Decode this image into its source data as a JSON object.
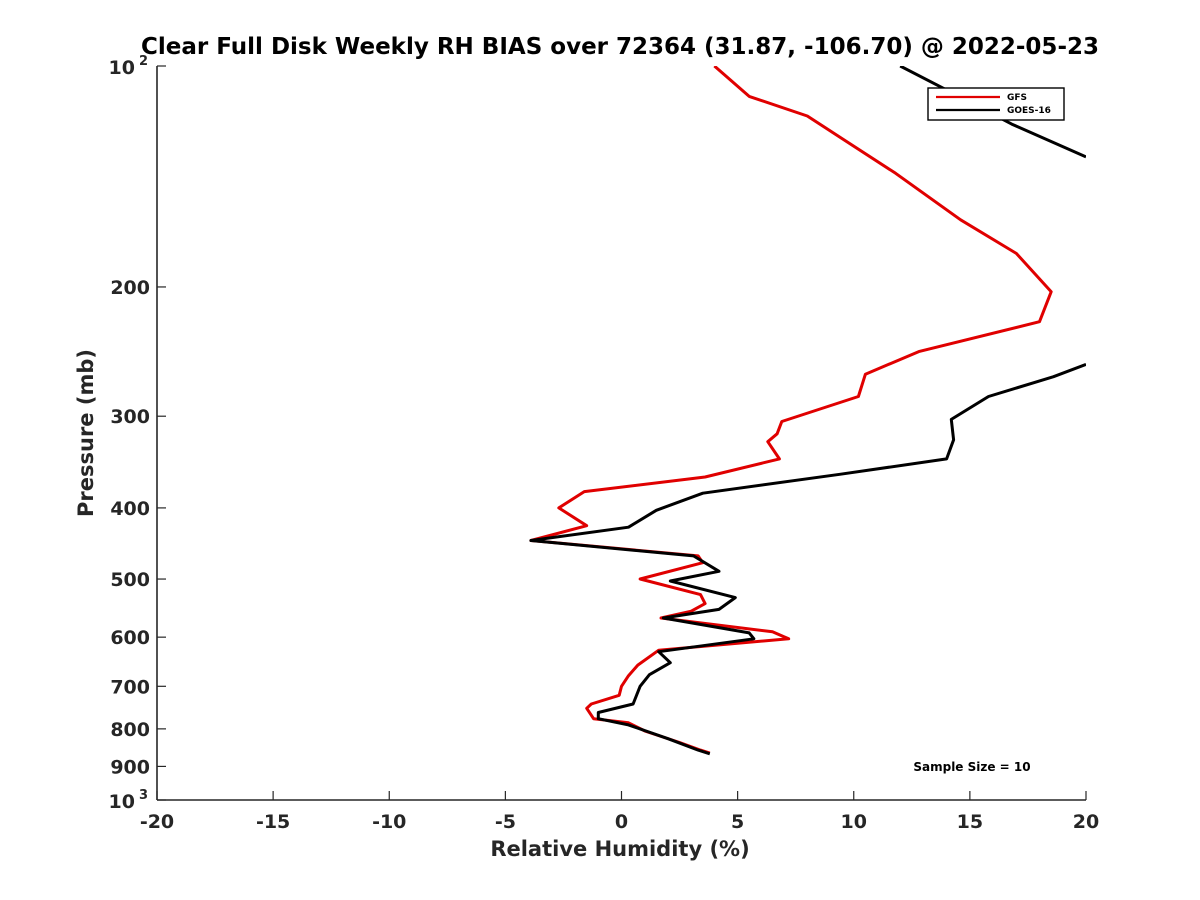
{
  "chart_data": {
    "type": "line",
    "title": "Clear Full Disk Weekly RH BIAS over 72364 (31.87, -106.70) @ 2022-05-23",
    "xlabel": "Relative Humidity (%)",
    "ylabel": "Pressure (mb)",
    "xlim": [
      -20,
      20
    ],
    "ylim": [
      100,
      1000
    ],
    "y_scale": "log",
    "y_reversed": true,
    "grid": false,
    "legend_position": "top-right",
    "annotation": "Sample Size = 10",
    "x_ticks": [
      "-20",
      "-15",
      "-10",
      "-5",
      "0",
      "5",
      "10",
      "15",
      "20"
    ],
    "y_ticks": [
      {
        "value": 100,
        "base": "10",
        "exp": "2"
      },
      {
        "value": 200,
        "label": "200"
      },
      {
        "value": 300,
        "label": "300"
      },
      {
        "value": 400,
        "label": "400"
      },
      {
        "value": 500,
        "label": "500"
      },
      {
        "value": 600,
        "label": "600"
      },
      {
        "value": 700,
        "label": "700"
      },
      {
        "value": 800,
        "label": "800"
      },
      {
        "value": 900,
        "label": "900"
      },
      {
        "value": 1000,
        "base": "10",
        "exp": "3"
      }
    ],
    "series": [
      {
        "name": "GFS",
        "color": "#e00000",
        "points": [
          [
            3.8,
            863
          ],
          [
            3.4,
            855
          ],
          [
            2.5,
            835
          ],
          [
            1.0,
            805
          ],
          [
            0.3,
            785
          ],
          [
            -1.2,
            775
          ],
          [
            -1.5,
            750
          ],
          [
            -1.3,
            740
          ],
          [
            -0.1,
            720
          ],
          [
            0.0,
            700
          ],
          [
            0.3,
            677
          ],
          [
            0.7,
            655
          ],
          [
            1.6,
            625
          ],
          [
            7.2,
            603
          ],
          [
            6.5,
            590
          ],
          [
            1.7,
            565
          ],
          [
            3.0,
            553
          ],
          [
            3.6,
            540
          ],
          [
            3.4,
            525
          ],
          [
            0.8,
            500
          ],
          [
            3.5,
            475
          ],
          [
            3.3,
            465
          ],
          [
            -3.9,
            443
          ],
          [
            -1.5,
            423
          ],
          [
            -2.7,
            400
          ],
          [
            -1.6,
            380
          ],
          [
            3.6,
            363
          ],
          [
            6.8,
            343
          ],
          [
            6.3,
            325
          ],
          [
            6.7,
            317
          ],
          [
            6.9,
            305
          ],
          [
            10.2,
            282
          ],
          [
            10.5,
            263
          ],
          [
            12.8,
            245
          ],
          [
            18.0,
            223
          ],
          [
            18.5,
            203
          ],
          [
            17.0,
            180
          ],
          [
            14.6,
            162
          ],
          [
            11.8,
            140
          ],
          [
            9.4,
            125
          ],
          [
            8.0,
            117
          ],
          [
            5.5,
            110
          ],
          [
            4.0,
            100
          ]
        ]
      },
      {
        "name": "GOES-16",
        "color": "#000000",
        "points": [
          [
            3.8,
            865
          ],
          [
            3.3,
            855
          ],
          [
            2.0,
            825
          ],
          [
            0.3,
            790
          ],
          [
            -1.0,
            775
          ],
          [
            -1.0,
            760
          ],
          [
            0.5,
            740
          ],
          [
            0.8,
            700
          ],
          [
            1.2,
            675
          ],
          [
            2.1,
            650
          ],
          [
            1.6,
            628
          ],
          [
            5.7,
            603
          ],
          [
            5.5,
            592
          ],
          [
            1.8,
            565
          ],
          [
            4.2,
            550
          ],
          [
            4.9,
            530
          ],
          [
            2.1,
            503
          ],
          [
            4.2,
            488
          ],
          [
            3.1,
            465
          ],
          [
            -3.9,
            443
          ],
          [
            0.3,
            425
          ],
          [
            1.5,
            403
          ],
          [
            3.5,
            382
          ],
          [
            9.4,
            360
          ],
          [
            14.0,
            343
          ],
          [
            14.3,
            323
          ],
          [
            14.2,
            303
          ],
          [
            15.8,
            282
          ],
          [
            18.6,
            265
          ],
          [
            20.0,
            255
          ]
        ],
        "top_points": [
          [
            12.0,
            100
          ],
          [
            13.8,
            107
          ],
          [
            16.8,
            120
          ],
          [
            20.0,
            133
          ]
        ]
      }
    ]
  }
}
